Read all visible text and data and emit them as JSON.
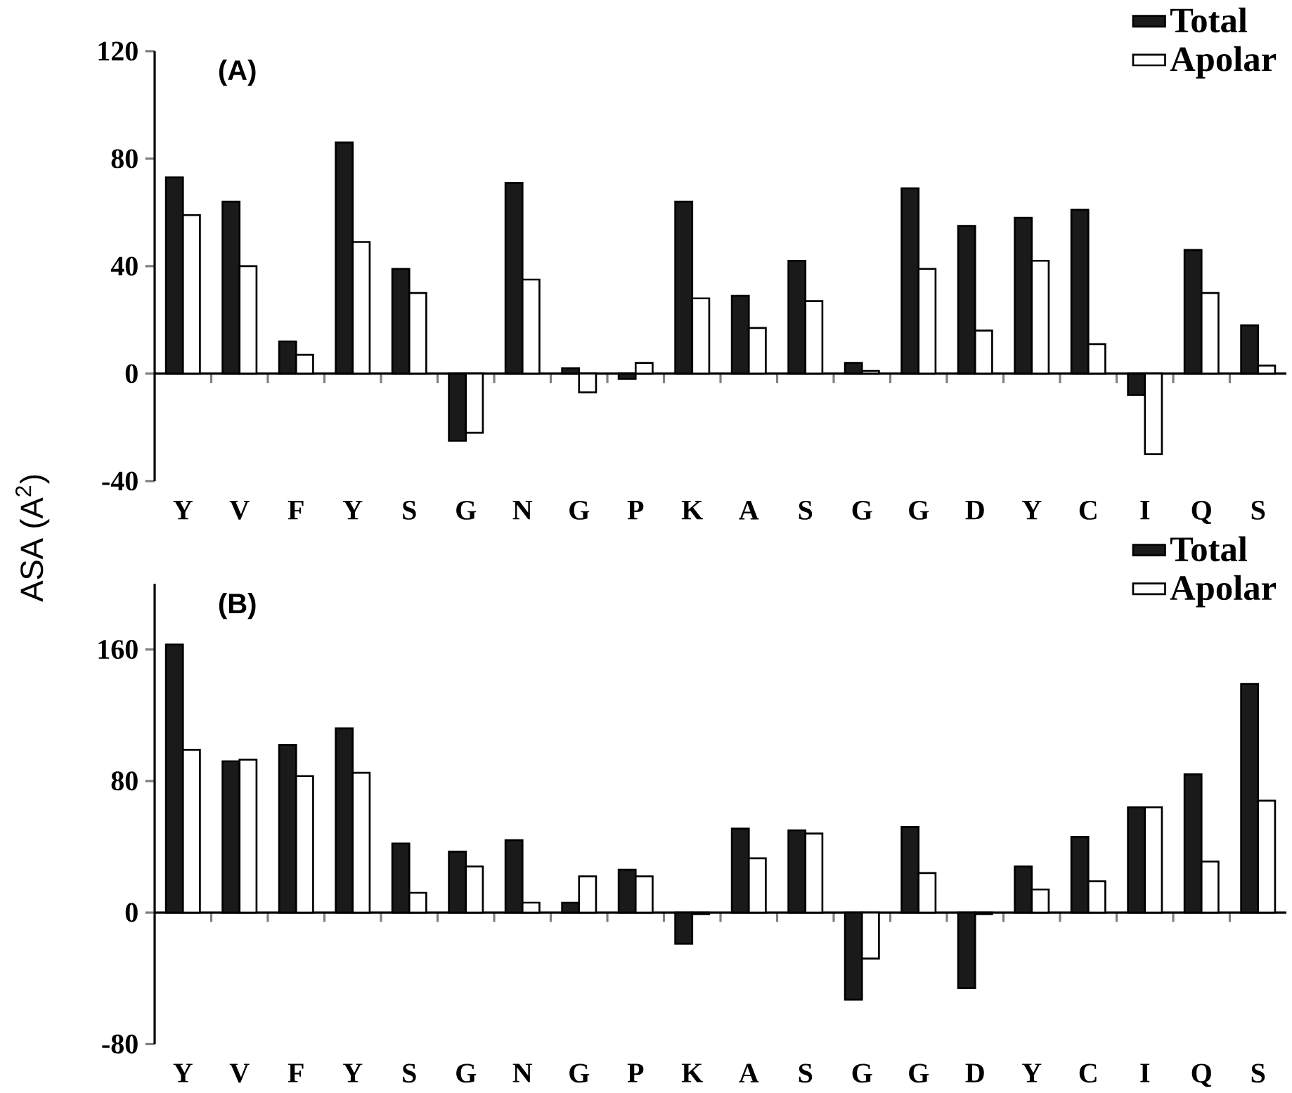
{
  "chart_data": [
    {
      "type": "bar",
      "title": "(A)",
      "categories": [
        "Y",
        "V",
        "F",
        "Y",
        "S",
        "G",
        "N",
        "G",
        "P",
        "K",
        "A",
        "S",
        "G",
        "G",
        "D",
        "Y",
        "C",
        "I",
        "Q",
        "S"
      ],
      "series": [
        {
          "name": "Total",
          "color": "#1a1a1a",
          "values": [
            73,
            64,
            12,
            86,
            39,
            -25,
            71,
            2,
            -2,
            64,
            29,
            42,
            4,
            69,
            55,
            58,
            61,
            -8,
            46,
            18
          ]
        },
        {
          "name": "Apolar",
          "color": "#ffffff",
          "values": [
            59,
            40,
            7,
            49,
            30,
            -22,
            35,
            -7,
            4,
            28,
            17,
            27,
            1,
            39,
            16,
            42,
            11,
            -30,
            30,
            3
          ]
        }
      ],
      "ylim": [
        -40,
        120
      ],
      "yticks": [
        -40,
        0,
        40,
        80,
        120
      ],
      "legend": "top right"
    },
    {
      "type": "bar",
      "title": "(B)",
      "ylabel": "ASA (A$^{2}$)",
      "categories": [
        "Y",
        "V",
        "F",
        "Y",
        "S",
        "G",
        "N",
        "G",
        "P",
        "K",
        "A",
        "S",
        "G",
        "G",
        "D",
        "Y",
        "C",
        "I",
        "Q",
        "S"
      ],
      "series": [
        {
          "name": "Total",
          "color": "#1a1a1a",
          "values": [
            163,
            92,
            102,
            112,
            42,
            37,
            44,
            6,
            26,
            -19,
            51,
            50,
            -53,
            52,
            -46,
            28,
            46,
            64,
            84,
            139
          ]
        },
        {
          "name": "Apolar",
          "color": "#ffffff",
          "values": [
            99,
            93,
            83,
            85,
            12,
            28,
            6,
            22,
            22,
            -1,
            33,
            48,
            -28,
            24,
            -1,
            14,
            19,
            64,
            31,
            68
          ]
        }
      ],
      "ylim": [
        -80,
        200
      ],
      "yticks": [
        -80,
        0,
        80,
        160
      ],
      "legend": "top right"
    }
  ]
}
